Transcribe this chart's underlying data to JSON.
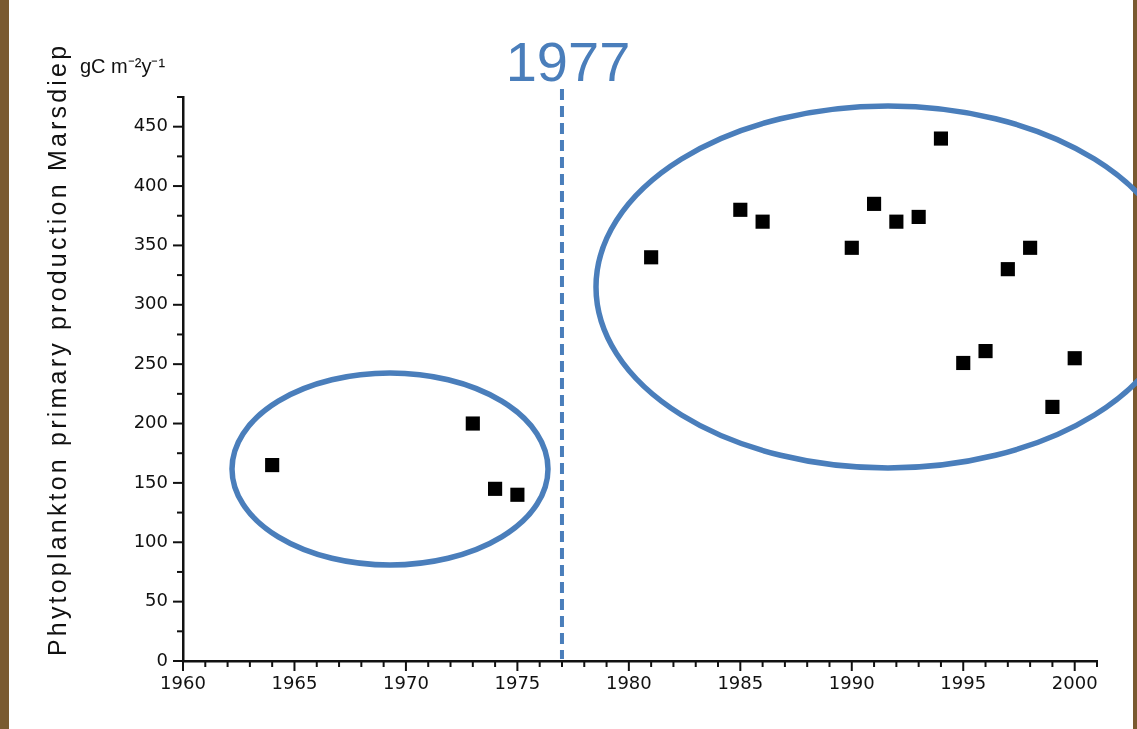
{
  "chart_data": {
    "type": "scatter",
    "ylabel": "Phytoplankton primary production Marsdiep",
    "annotations": [
      "gC m⁻²y⁻¹"
    ],
    "x": [
      1964,
      1973,
      1974,
      1975,
      1981,
      1985,
      1986,
      1990,
      1991,
      1992,
      1993,
      1994,
      1995,
      1996,
      1997,
      1998,
      1999,
      2000
    ],
    "values": [
      165,
      200,
      145,
      140,
      340,
      380,
      370,
      348,
      385,
      370,
      374,
      440,
      251,
      261,
      330,
      348,
      214,
      255
    ],
    "color": "#000000",
    "marker": "square",
    "xlim": [
      1960,
      2001
    ],
    "xticks": [
      1960,
      {
        "value": 1961,
        "label": null
      },
      {
        "value": 1962,
        "label": null
      },
      {
        "value": 1963,
        "label": null
      },
      {
        "value": 1964,
        "label": null
      },
      1965,
      {
        "value": 1966,
        "label": null
      },
      {
        "value": 1967,
        "label": null
      },
      {
        "value": 1968,
        "label": null
      },
      {
        "value": 1969,
        "label": null
      },
      1970,
      {
        "value": 1971,
        "label": null
      },
      {
        "value": 1972,
        "label": null
      },
      {
        "value": 1973,
        "label": null
      },
      {
        "value": 1974,
        "label": null
      },
      1975,
      {
        "value": 1976,
        "label": null
      },
      {
        "value": 1977,
        "label": null
      },
      {
        "value": 1978,
        "label": null
      },
      {
        "value": 1979,
        "label": null
      },
      1980,
      {
        "value": 1981,
        "label": null
      },
      {
        "value": 1982,
        "label": null
      },
      {
        "value": 1983,
        "label": null
      },
      {
        "value": 1984,
        "label": null
      },
      1985,
      {
        "value": 1986,
        "label": null
      },
      {
        "value": 1987,
        "label": null
      },
      {
        "value": 1988,
        "label": null
      },
      {
        "value": 1989,
        "label": null
      },
      1990,
      {
        "value": 1991,
        "label": null
      },
      {
        "value": 1992,
        "label": null
      },
      {
        "value": 1993,
        "label": null
      },
      {
        "value": 1994,
        "label": null
      },
      1995,
      {
        "value": 1996,
        "label": null
      },
      {
        "value": 1997,
        "label": null
      },
      {
        "value": 1998,
        "label": null
      },
      {
        "value": 1999,
        "label": null
      },
      2000,
      {
        "value": 2001,
        "label": null
      }
    ],
    "ylim": [
      0,
      475
    ],
    "yticks": [
      0,
      {
        "value": 25,
        "label": null
      },
      50,
      {
        "value": 75,
        "label": null
      },
      100,
      {
        "value": 125,
        "label": null
      },
      150,
      {
        "value": 175,
        "label": null
      },
      200,
      {
        "value": 225,
        "label": null
      },
      250,
      {
        "value": 275,
        "label": null
      },
      300,
      {
        "value": 325,
        "label": null
      },
      350,
      {
        "value": 375,
        "label": null
      },
      400,
      {
        "value": 425,
        "label": null
      },
      450,
      {
        "value": 475,
        "label": null
      }
    ],
    "ref_lines": [
      {
        "axis": "x",
        "value": 1977,
        "label": "1977",
        "color": "#4a7ebb",
        "line_style": "dashed"
      }
    ]
  }
}
